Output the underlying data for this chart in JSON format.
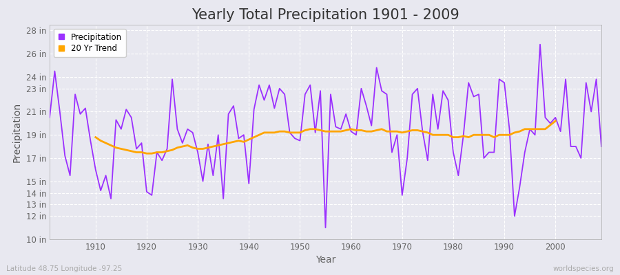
{
  "title": "Yearly Total Precipitation 1901 - 2009",
  "xlabel": "Year",
  "ylabel": "Precipitation",
  "lat_lon_label": "Latitude 48.75 Longitude -97.25",
  "watermark": "worldspecies.org",
  "years": [
    1901,
    1902,
    1903,
    1904,
    1905,
    1906,
    1907,
    1908,
    1909,
    1910,
    1911,
    1912,
    1913,
    1914,
    1915,
    1916,
    1917,
    1918,
    1919,
    1920,
    1921,
    1922,
    1923,
    1924,
    1925,
    1926,
    1927,
    1928,
    1929,
    1930,
    1931,
    1932,
    1933,
    1934,
    1935,
    1936,
    1937,
    1938,
    1939,
    1940,
    1941,
    1942,
    1943,
    1944,
    1945,
    1946,
    1947,
    1948,
    1949,
    1950,
    1951,
    1952,
    1953,
    1954,
    1955,
    1956,
    1957,
    1958,
    1959,
    1960,
    1961,
    1962,
    1963,
    1964,
    1965,
    1966,
    1967,
    1968,
    1969,
    1970,
    1971,
    1972,
    1973,
    1974,
    1975,
    1976,
    1977,
    1978,
    1979,
    1980,
    1981,
    1982,
    1983,
    1984,
    1985,
    1986,
    1987,
    1988,
    1989,
    1990,
    1991,
    1992,
    1993,
    1994,
    1995,
    1996,
    1997,
    1998,
    1999,
    2000,
    2001,
    2002,
    2003,
    2004,
    2005,
    2006,
    2007,
    2008,
    2009
  ],
  "precip_in": [
    20.5,
    24.5,
    21.0,
    17.2,
    15.5,
    22.5,
    20.8,
    21.3,
    18.5,
    16.0,
    14.2,
    15.5,
    13.5,
    20.3,
    19.5,
    21.2,
    20.5,
    17.8,
    18.3,
    14.1,
    13.8,
    17.5,
    16.8,
    17.8,
    23.8,
    19.5,
    18.3,
    19.5,
    19.2,
    17.5,
    15.0,
    18.2,
    15.5,
    19.0,
    13.5,
    20.8,
    21.5,
    18.7,
    19.0,
    14.8,
    21.2,
    23.3,
    22.0,
    23.3,
    21.3,
    23.0,
    22.5,
    19.2,
    18.7,
    18.5,
    22.5,
    23.3,
    19.2,
    22.8,
    11.0,
    22.5,
    19.7,
    19.5,
    20.8,
    19.3,
    19.0,
    23.0,
    21.5,
    19.8,
    24.8,
    22.8,
    22.5,
    17.5,
    19.0,
    13.8,
    17.0,
    22.5,
    23.0,
    19.3,
    16.8,
    22.5,
    19.5,
    22.8,
    22.0,
    17.5,
    15.5,
    19.0,
    23.5,
    22.3,
    22.5,
    17.0,
    17.5,
    17.5,
    23.8,
    23.5,
    19.5,
    12.0,
    14.5,
    17.5,
    19.5,
    19.0,
    26.8,
    20.5,
    20.0,
    20.5,
    19.3,
    23.8,
    18.0,
    18.0,
    17.0,
    23.5,
    21.0,
    23.8,
    18.0
  ],
  "trend_years": [
    1910,
    1911,
    1912,
    1913,
    1914,
    1915,
    1916,
    1917,
    1918,
    1919,
    1920,
    1921,
    1922,
    1923,
    1924,
    1925,
    1926,
    1927,
    1928,
    1929,
    1930,
    1931,
    1932,
    1933,
    1934,
    1935,
    1936,
    1937,
    1938,
    1939,
    1940,
    1941,
    1942,
    1943,
    1944,
    1945,
    1946,
    1947,
    1948,
    1949,
    1950,
    1951,
    1952,
    1953,
    1954,
    1955,
    1956,
    1957,
    1958,
    1959,
    1960,
    1961,
    1962,
    1963,
    1964,
    1965,
    1966,
    1967,
    1968,
    1969,
    1970,
    1971,
    1972,
    1973,
    1974,
    1975,
    1976,
    1977,
    1978,
    1979,
    1980,
    1981,
    1982,
    1983,
    1984,
    1985,
    1986,
    1987,
    1988,
    1989,
    1990,
    1991,
    1992,
    1993,
    1994,
    1995,
    1996,
    1997,
    1998,
    2000
  ],
  "trend_vals": [
    18.8,
    18.5,
    18.3,
    18.1,
    17.9,
    17.8,
    17.7,
    17.6,
    17.5,
    17.5,
    17.4,
    17.4,
    17.5,
    17.5,
    17.6,
    17.7,
    17.9,
    18.0,
    18.1,
    17.9,
    17.8,
    17.8,
    17.9,
    18.0,
    18.1,
    18.2,
    18.3,
    18.4,
    18.5,
    18.4,
    18.6,
    18.8,
    19.0,
    19.2,
    19.2,
    19.2,
    19.3,
    19.3,
    19.2,
    19.2,
    19.2,
    19.4,
    19.5,
    19.5,
    19.4,
    19.3,
    19.3,
    19.3,
    19.3,
    19.4,
    19.5,
    19.4,
    19.4,
    19.3,
    19.3,
    19.4,
    19.5,
    19.3,
    19.3,
    19.3,
    19.2,
    19.3,
    19.4,
    19.4,
    19.3,
    19.2,
    19.0,
    19.0,
    19.0,
    19.0,
    18.8,
    18.8,
    18.9,
    18.8,
    19.0,
    19.0,
    19.0,
    19.0,
    18.8,
    19.0,
    19.0,
    19.0,
    19.2,
    19.3,
    19.5,
    19.5,
    19.5,
    19.5,
    19.5,
    20.2
  ],
  "precip_color": "#9B30FF",
  "trend_color": "#FFA500",
  "bg_color": "#E8E8F0",
  "plot_bg_color": "#E8E8F0",
  "grid_color": "#FFFFFF",
  "ylim": [
    10,
    28.5
  ],
  "xlim": [
    1901,
    2009
  ],
  "yticks": [
    10,
    12,
    13,
    14,
    15,
    17,
    19,
    21,
    23,
    24,
    26,
    28
  ],
  "ytick_labels": [
    "10 in",
    "12 in",
    "13 in",
    "14 in",
    "15 in",
    "17 in",
    "19 in",
    "21 in",
    "23 in",
    "24 in",
    "26 in",
    "28 in"
  ],
  "xticks": [
    1910,
    1920,
    1930,
    1940,
    1950,
    1960,
    1970,
    1980,
    1990,
    2000
  ],
  "title_fontsize": 15,
  "axis_label_fontsize": 10,
  "tick_fontsize": 8.5,
  "legend_fontsize": 8.5,
  "line_width": 1.3
}
